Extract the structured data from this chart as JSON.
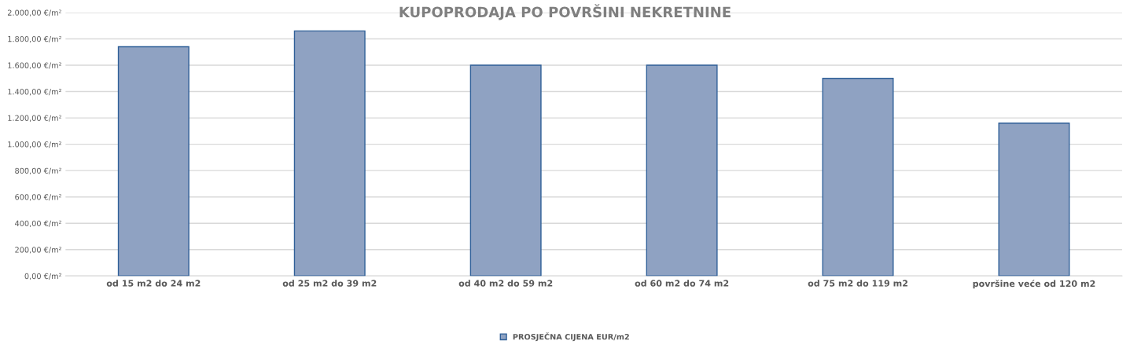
{
  "chart_data": {
    "type": "bar",
    "title": "KUPOPRODAJA PO POVRŠINI NEKRETNINE",
    "categories": [
      "od 15 m2 do 24 m2",
      "od 25 m2 do 39 m2",
      "od 40 m2 do 59 m2",
      "od 60 m2 do 74 m2",
      "od 75 m2 do 119 m2",
      "površine veće od 120 m2"
    ],
    "series": [
      {
        "name": "PROSJEČNA CIJENA EUR/m2",
        "color": "#8fa2c2",
        "values": [
          1740,
          1860,
          1600,
          1600,
          1500,
          1160
        ]
      }
    ],
    "ylim": [
      0,
      2000
    ],
    "yticks": [
      {
        "value": 0,
        "label": "0,00 €/m²"
      },
      {
        "value": 200,
        "label": "200,00 €/m²"
      },
      {
        "value": 400,
        "label": "400,00 €/m²"
      },
      {
        "value": 600,
        "label": "600,00 €/m²"
      },
      {
        "value": 800,
        "label": "800,00 €/m²"
      },
      {
        "value": 1000,
        "label": "1.000,00 €/m²"
      },
      {
        "value": 1200,
        "label": "1.200,00 €/m²"
      },
      {
        "value": 1400,
        "label": "1.400,00 €/m²"
      },
      {
        "value": 1600,
        "label": "1.600,00 €/m²"
      },
      {
        "value": 1800,
        "label": "1.800,00 €/m²"
      },
      {
        "value": 2000,
        "label": "2.000,00 €/m²"
      }
    ],
    "grid": "y",
    "legend": "bottom"
  }
}
